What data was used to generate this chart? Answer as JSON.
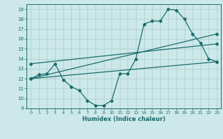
{
  "xlabel": "Humidex (Indice chaleur)",
  "bg_color": "#cce8e8",
  "grid_color": "#aacccc",
  "line_color": "#1a6b6b",
  "xlim": [
    -0.5,
    23.5
  ],
  "ylim": [
    9,
    19.5
  ],
  "yticks": [
    9,
    10,
    11,
    12,
    13,
    14,
    15,
    16,
    17,
    18,
    19
  ],
  "xticks": [
    0,
    1,
    2,
    3,
    4,
    5,
    6,
    7,
    8,
    9,
    10,
    11,
    12,
    13,
    14,
    15,
    16,
    17,
    18,
    19,
    20,
    21,
    22,
    23
  ],
  "line1_x": [
    0,
    1,
    2,
    3,
    4,
    5,
    6,
    7,
    8,
    9,
    10,
    11,
    12,
    13,
    14,
    15,
    16,
    17,
    18,
    19,
    20,
    21,
    22,
    23
  ],
  "line1_y": [
    12.0,
    12.4,
    12.5,
    13.5,
    11.9,
    11.2,
    10.8,
    9.8,
    9.3,
    9.3,
    9.8,
    12.5,
    12.5,
    14.0,
    17.5,
    17.8,
    17.8,
    19.0,
    18.9,
    18.0,
    16.5,
    15.6,
    14.0,
    13.7
  ],
  "line2_x": [
    0,
    23
  ],
  "line2_y": [
    12.0,
    16.5
  ],
  "line3_x": [
    0,
    23
  ],
  "line3_y": [
    13.5,
    15.5
  ],
  "line4_x": [
    0,
    23
  ],
  "line4_y": [
    12.0,
    13.7
  ]
}
